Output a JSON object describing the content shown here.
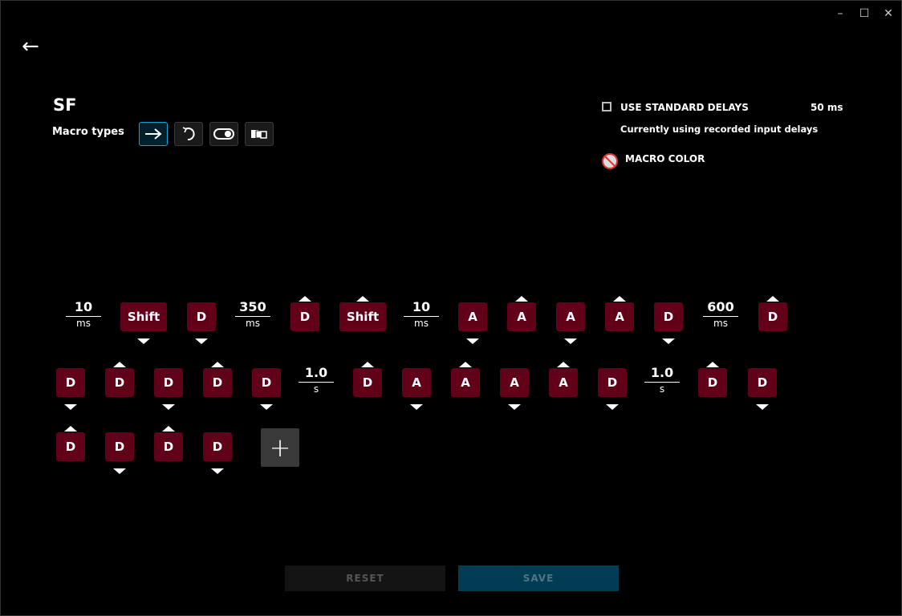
{
  "window": {
    "minimize": "–",
    "maximize": "☐",
    "close": "✕"
  },
  "back_icon": "←",
  "title": "SF",
  "macro_types": {
    "label": "Macro types",
    "types": [
      {
        "name": "no-repeat",
        "icon": "arrow-right",
        "active": true
      },
      {
        "name": "repeat-while-holding",
        "icon": "loop"
      },
      {
        "name": "toggle",
        "icon": "toggle"
      },
      {
        "name": "sequence",
        "icon": "sequence"
      }
    ]
  },
  "settings": {
    "use_standard_delays": "USE STANDARD DELAYS",
    "standard_delay": "50 ms",
    "checked": false,
    "status": "Currently using recorded input delays",
    "macro_color": "MACRO COLOR"
  },
  "key_color": "#62001a",
  "rows": [
    [
      {
        "t": "delay",
        "v": "10",
        "u": "ms"
      },
      {
        "t": "key",
        "k": "Shift",
        "d": "down"
      },
      {
        "t": "key",
        "k": "D",
        "d": "down"
      },
      {
        "t": "delay",
        "v": "350",
        "u": "ms"
      },
      {
        "t": "key",
        "k": "D",
        "d": "up"
      },
      {
        "t": "key",
        "k": "Shift",
        "d": "up"
      },
      {
        "t": "delay",
        "v": "10",
        "u": "ms"
      },
      {
        "t": "key",
        "k": "A",
        "d": "down"
      },
      {
        "t": "key",
        "k": "A",
        "d": "up"
      },
      {
        "t": "key",
        "k": "A",
        "d": "down"
      },
      {
        "t": "key",
        "k": "A",
        "d": "up"
      },
      {
        "t": "key",
        "k": "D",
        "d": "down"
      },
      {
        "t": "delay",
        "v": "600",
        "u": "ms"
      },
      {
        "t": "key",
        "k": "D",
        "d": "up"
      }
    ],
    [
      {
        "t": "key",
        "k": "D",
        "d": "down"
      },
      {
        "t": "key",
        "k": "D",
        "d": "up"
      },
      {
        "t": "key",
        "k": "D",
        "d": "down"
      },
      {
        "t": "key",
        "k": "D",
        "d": "up"
      },
      {
        "t": "key",
        "k": "D",
        "d": "down"
      },
      {
        "t": "delay",
        "v": "1.0",
        "u": "s"
      },
      {
        "t": "key",
        "k": "D",
        "d": "up"
      },
      {
        "t": "key",
        "k": "A",
        "d": "down"
      },
      {
        "t": "key",
        "k": "A",
        "d": "up"
      },
      {
        "t": "key",
        "k": "A",
        "d": "down"
      },
      {
        "t": "key",
        "k": "A",
        "d": "up"
      },
      {
        "t": "key",
        "k": "D",
        "d": "down"
      },
      {
        "t": "delay",
        "v": "1.0",
        "u": "s"
      },
      {
        "t": "key",
        "k": "D",
        "d": "up"
      },
      {
        "t": "key",
        "k": "D",
        "d": "down"
      }
    ],
    [
      {
        "t": "key",
        "k": "D",
        "d": "up"
      },
      {
        "t": "key",
        "k": "D",
        "d": "down"
      },
      {
        "t": "key",
        "k": "D",
        "d": "up"
      },
      {
        "t": "key",
        "k": "D",
        "d": "down"
      }
    ]
  ],
  "add_label": "+",
  "buttons": {
    "reset": "RESET",
    "save": "SAVE"
  }
}
